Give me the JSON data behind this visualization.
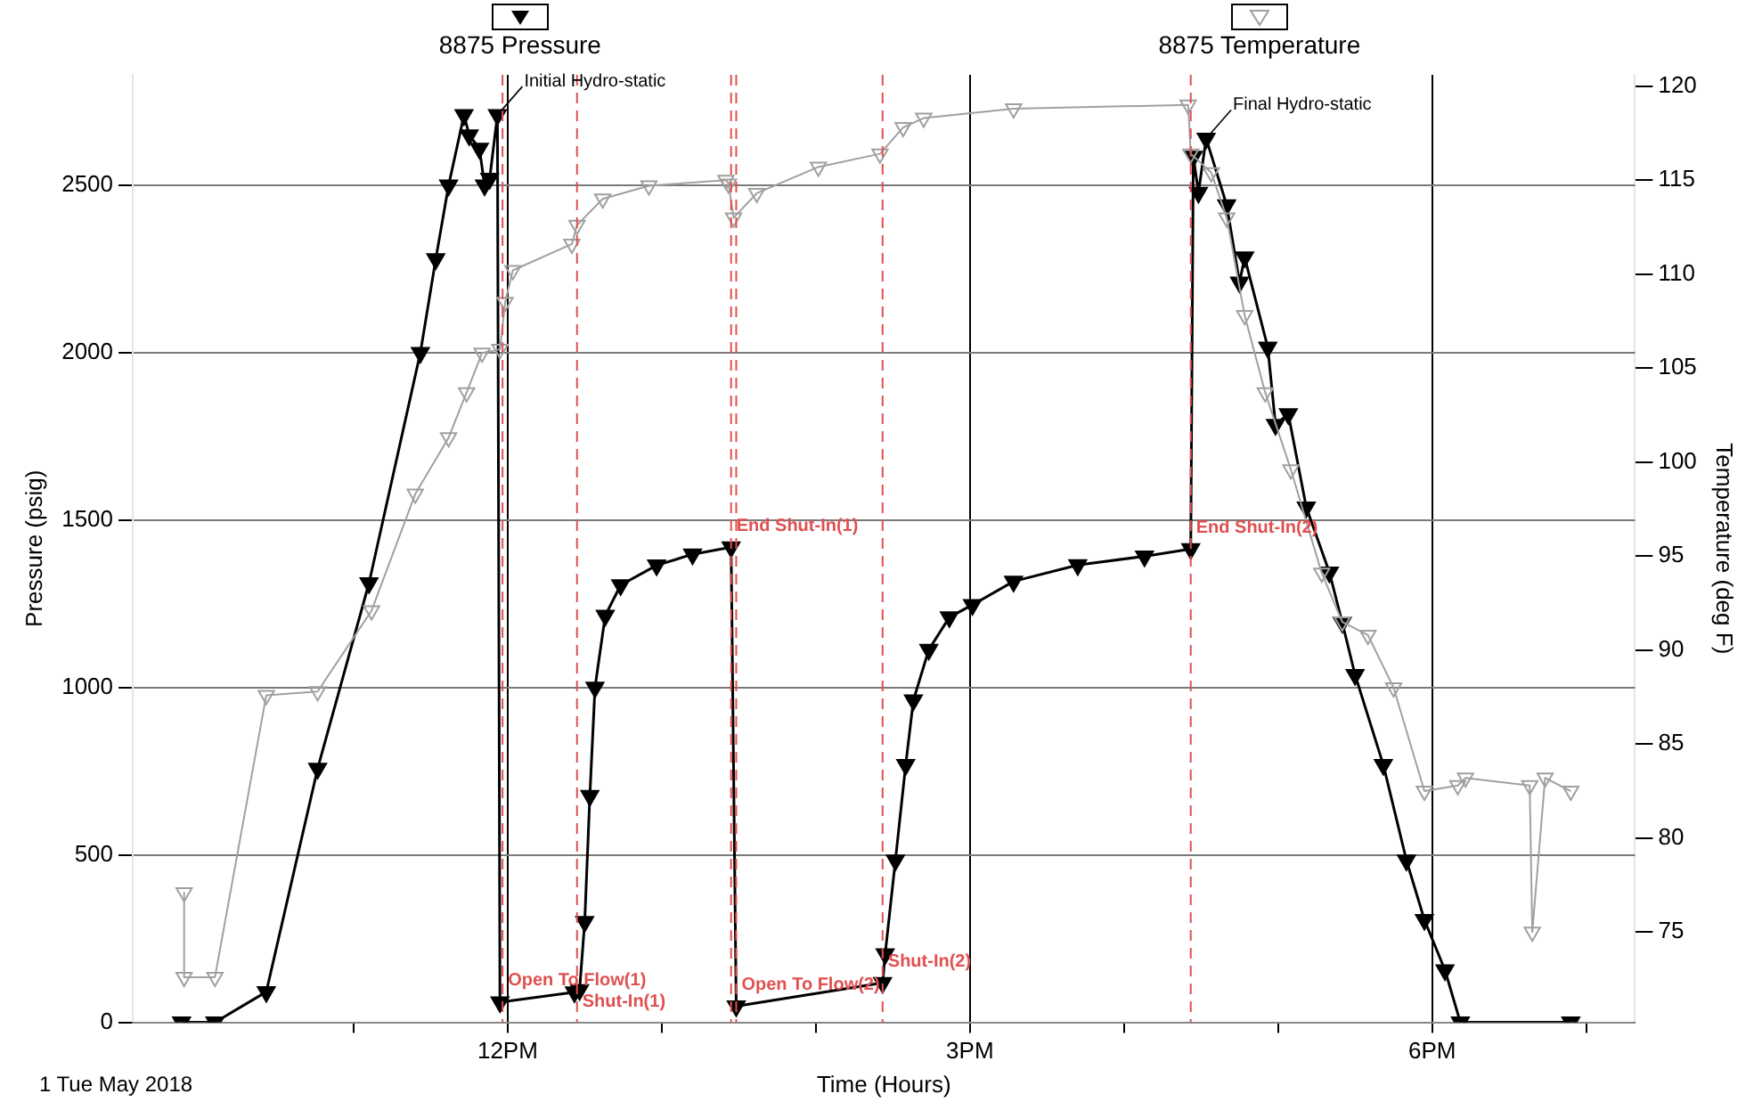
{
  "chart_data": {
    "type": "line",
    "xlabel": "Time (Hours)",
    "ylabel": "Pressure (psig)",
    "y2label": "Temperature (deg F)",
    "xlim": [
      "2018-05-01T09:34",
      "2018-05-01T19:19"
    ],
    "xticks": [
      {
        "value": "2018-05-01T11:00",
        "label": null
      },
      {
        "value": "2018-05-01T12:00",
        "label": "12PM"
      },
      {
        "value": "2018-05-01T13:00",
        "label": null
      },
      {
        "value": "2018-05-01T14:00",
        "label": null
      },
      {
        "value": "2018-05-01T15:00",
        "label": "3PM"
      },
      {
        "value": "2018-05-01T16:00",
        "label": null
      },
      {
        "value": "2018-05-01T17:00",
        "label": null
      },
      {
        "value": "2018-05-01T18:00",
        "label": "6PM"
      },
      {
        "value": "2018-05-01T19:00",
        "label": null
      }
    ],
    "ylim": [
      0,
      2830
    ],
    "yticks": [
      0,
      500,
      1000,
      1500,
      2000,
      2500
    ],
    "y2lim": [
      70.2,
      120.6
    ],
    "y2ticks": [
      75,
      80,
      85,
      90,
      95,
      100,
      105,
      110,
      115,
      120
    ],
    "grid": true,
    "legend": "top",
    "marker": "triangle",
    "line_style": "solid",
    "series": [
      {
        "name": "8875 Pressure",
        "color": "#000000",
        "x": [
          "2018-05-01T09:53",
          "2018-05-01T10:06",
          "2018-05-01T10:26",
          "2018-05-01T10:46",
          "2018-05-01T11:06",
          "2018-05-01T11:26",
          "2018-05-01T11:32",
          "2018-05-01T11:37",
          "2018-05-01T11:43",
          "2018-05-01T11:45",
          "2018-05-01T11:49",
          "2018-05-01T11:51",
          "2018-05-01T11:53",
          "2018-05-01T11:56",
          "2018-05-01T11:57",
          "2018-05-01T12:26",
          "2018-05-01T12:28",
          "2018-05-01T12:30",
          "2018-05-01T12:32",
          "2018-05-01T12:34",
          "2018-05-01T12:38",
          "2018-05-01T12:44",
          "2018-05-01T12:58",
          "2018-05-01T13:12",
          "2018-05-01T13:27",
          "2018-05-01T13:29",
          "2018-05-01T14:26",
          "2018-05-01T14:27",
          "2018-05-01T14:31",
          "2018-05-01T14:35",
          "2018-05-01T14:38",
          "2018-05-01T14:44",
          "2018-05-01T14:52",
          "2018-05-01T15:01",
          "2018-05-01T15:17",
          "2018-05-01T15:42",
          "2018-05-01T16:08",
          "2018-05-01T16:26",
          "2018-05-01T16:27",
          "2018-05-01T16:29",
          "2018-05-01T16:32",
          "2018-05-01T16:40",
          "2018-05-01T16:45",
          "2018-05-01T16:47",
          "2018-05-01T16:56",
          "2018-05-01T16:59",
          "2018-05-01T17:04",
          "2018-05-01T17:11",
          "2018-05-01T17:20",
          "2018-05-01T17:25",
          "2018-05-01T17:30",
          "2018-05-01T17:41",
          "2018-05-01T17:50",
          "2018-05-01T17:57",
          "2018-05-01T18:05",
          "2018-05-01T18:11",
          "2018-05-01T18:54"
        ],
        "values": [
          0,
          0,
          91,
          758,
          1312,
          2000,
          2280,
          2500,
          2710,
          2650,
          2610,
          2500,
          2520,
          2710,
          60,
          90,
          97,
          300,
          677,
          1000,
          1215,
          1306,
          1365,
          1398,
          1419,
          48,
          118,
          204,
          484,
          769,
          962,
          1113,
          1210,
          1247,
          1317,
          1366,
          1392,
          1414,
          2586,
          2478,
          2640,
          2441,
          2210,
          2285,
          2016,
          1785,
          1817,
          1538,
          1344,
          1194,
          1038,
          769,
          484,
          306,
          156,
          0,
          0
        ]
      },
      {
        "name": "8875 Temperature",
        "color": "#a0a0a0",
        "axis": "y2",
        "x": [
          "2018-05-01T09:54",
          "2018-05-01T09:54",
          "2018-05-01T10:06",
          "2018-05-01T10:26",
          "2018-05-01T10:46",
          "2018-05-01T11:07",
          "2018-05-01T11:24",
          "2018-05-01T11:37",
          "2018-05-01T11:44",
          "2018-05-01T11:50",
          "2018-05-01T11:57",
          "2018-05-01T11:59",
          "2018-05-01T12:02",
          "2018-05-01T12:25",
          "2018-05-01T12:27",
          "2018-05-01T12:37",
          "2018-05-01T12:55",
          "2018-05-01T13:25",
          "2018-05-01T13:26",
          "2018-05-01T13:28",
          "2018-05-01T13:37",
          "2018-05-01T14:01",
          "2018-05-01T14:25",
          "2018-05-01T14:34",
          "2018-05-01T14:42",
          "2018-05-01T15:17",
          "2018-05-01T16:25",
          "2018-05-01T16:26",
          "2018-05-01T16:34",
          "2018-05-01T16:40",
          "2018-05-01T16:47",
          "2018-05-01T16:55",
          "2018-05-01T17:05",
          "2018-05-01T17:17",
          "2018-05-01T17:25",
          "2018-05-01T17:35",
          "2018-05-01T17:45",
          "2018-05-01T17:57",
          "2018-05-01T18:10",
          "2018-05-01T18:13",
          "2018-05-01T18:38",
          "2018-05-01T18:39",
          "2018-05-01T18:44",
          "2018-05-01T18:54"
        ],
        "values": [
          77.1,
          72.6,
          72.6,
          87.6,
          87.8,
          92.1,
          98.3,
          101.3,
          103.7,
          105.8,
          106.0,
          108.5,
          110.2,
          111.6,
          112.6,
          114.0,
          114.7,
          115.0,
          114.8,
          113.0,
          114.3,
          115.7,
          116.4,
          117.8,
          118.3,
          118.8,
          119.0,
          116.4,
          115.4,
          113.0,
          107.8,
          103.7,
          99.6,
          94.1,
          91.5,
          90.8,
          88.0,
          82.5,
          82.8,
          83.2,
          82.8,
          75.0,
          83.2,
          82.5
        ]
      }
    ],
    "ref_lines": [
      {
        "axis": "x",
        "value": "2018-05-01T11:58",
        "label": "Open To Flow(1)",
        "color": "#e05050",
        "line_style": "dashed"
      },
      {
        "axis": "x",
        "value": "2018-05-01T12:27",
        "label": "Shut-In(1)",
        "color": "#e05050",
        "line_style": "dashed"
      },
      {
        "axis": "x",
        "value": "2018-05-01T13:27",
        "label": "End Shut-In(1)",
        "color": "#e05050",
        "line_style": "dashed"
      },
      {
        "axis": "x",
        "value": "2018-05-01T13:29",
        "label": "Open To Flow(2)",
        "color": "#e05050",
        "line_style": "dashed"
      },
      {
        "axis": "x",
        "value": "2018-05-01T14:26",
        "label": "Shut-In(2)",
        "color": "#e05050",
        "line_style": "dashed"
      },
      {
        "axis": "x",
        "value": "2018-05-01T16:26",
        "label": "End Shut-In(2)",
        "color": "#e05050",
        "line_style": "dashed"
      }
    ],
    "annotations": [
      {
        "text": "Initial Hydro-static",
        "x": "2018-05-01T11:56",
        "y": 2710
      },
      {
        "text": "Final Hydro-static",
        "x": "2018-05-01T16:32",
        "y": 2640
      },
      "1 Tue May 2018"
    ]
  }
}
